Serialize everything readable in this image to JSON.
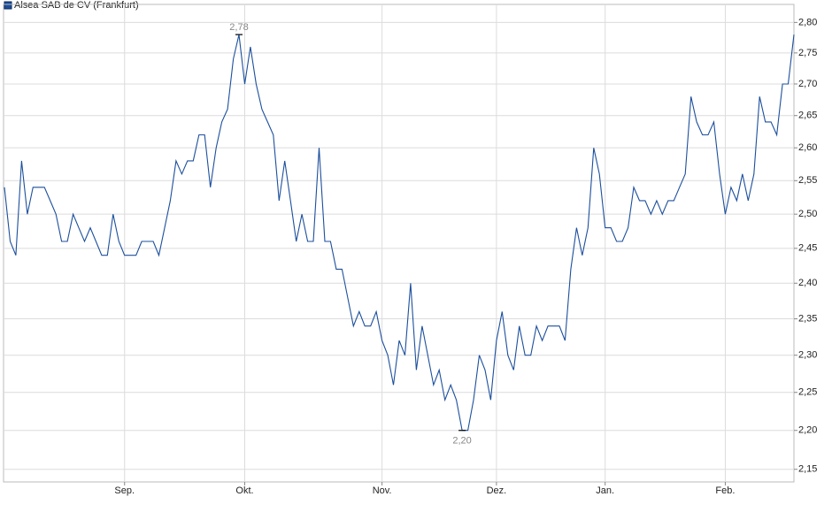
{
  "chart_data": {
    "type": "line",
    "series": [
      {
        "name": "Alsea SAB de CV (Frankfurt)",
        "color": "#1c4f9c",
        "values": [
          2.54,
          2.46,
          2.44,
          2.58,
          2.5,
          2.54,
          2.54,
          2.54,
          2.52,
          2.5,
          2.46,
          2.46,
          2.5,
          2.48,
          2.46,
          2.48,
          2.46,
          2.44,
          2.44,
          2.5,
          2.46,
          2.44,
          2.44,
          2.44,
          2.46,
          2.46,
          2.46,
          2.44,
          2.48,
          2.52,
          2.58,
          2.56,
          2.58,
          2.58,
          2.62,
          2.62,
          2.54,
          2.6,
          2.64,
          2.66,
          2.74,
          2.78,
          2.7,
          2.76,
          2.7,
          2.66,
          2.64,
          2.62,
          2.52,
          2.58,
          2.52,
          2.46,
          2.5,
          2.46,
          2.46,
          2.6,
          2.46,
          2.46,
          2.42,
          2.42,
          2.38,
          2.34,
          2.36,
          2.34,
          2.34,
          2.36,
          2.32,
          2.3,
          2.26,
          2.32,
          2.3,
          2.4,
          2.28,
          2.34,
          2.3,
          2.26,
          2.28,
          2.24,
          2.26,
          2.24,
          2.2,
          2.2,
          2.24,
          2.3,
          2.28,
          2.24,
          2.32,
          2.36,
          2.3,
          2.28,
          2.34,
          2.3,
          2.3,
          2.34,
          2.32,
          2.34,
          2.34,
          2.34,
          2.32,
          2.42,
          2.48,
          2.44,
          2.48,
          2.6,
          2.56,
          2.48,
          2.48,
          2.46,
          2.46,
          2.48,
          2.54,
          2.52,
          2.52,
          2.5,
          2.52,
          2.5,
          2.52,
          2.52,
          2.54,
          2.56,
          2.68,
          2.64,
          2.62,
          2.62,
          2.64,
          2.56,
          2.5,
          2.54,
          2.52,
          2.56,
          2.52,
          2.56,
          2.68,
          2.64,
          2.64,
          2.62,
          2.7,
          2.7,
          2.78
        ]
      }
    ],
    "categories": [
      null,
      null,
      null,
      null,
      null,
      null,
      null,
      null,
      null,
      null,
      null,
      null,
      null,
      null,
      null,
      null,
      null,
      null,
      null,
      null,
      null,
      "Sep.",
      null,
      null,
      null,
      null,
      null,
      null,
      null,
      null,
      null,
      null,
      null,
      null,
      null,
      null,
      null,
      null,
      null,
      null,
      null,
      null,
      "Okt.",
      null,
      null,
      null,
      null,
      null,
      null,
      null,
      null,
      null,
      null,
      null,
      null,
      null,
      null,
      null,
      null,
      null,
      null,
      null,
      null,
      null,
      null,
      null,
      "Nov.",
      null,
      null,
      null,
      null,
      null,
      null,
      null,
      null,
      null,
      null,
      null,
      null,
      null,
      null,
      null,
      null,
      null,
      null,
      null,
      "Dez.",
      null,
      null,
      null,
      null,
      null,
      null,
      null,
      null,
      null,
      null,
      null,
      null,
      null,
      null,
      null,
      null,
      null,
      null,
      "Jan.",
      null,
      null,
      null,
      null,
      null,
      null,
      null,
      null,
      null,
      null,
      null,
      null,
      null,
      null,
      null,
      null,
      null,
      null,
      null,
      null,
      "Feb.",
      null,
      null,
      null,
      null,
      null,
      null,
      null,
      null,
      null,
      null,
      null,
      null
    ],
    "log_scale": true,
    "grid": true,
    "ylim": [
      2.134,
      2.83
    ],
    "yticks": [
      {
        "value": 2.15,
        "label": "2,15"
      },
      {
        "value": 2.2,
        "label": "2,20"
      },
      {
        "value": 2.25,
        "label": "2,25"
      },
      {
        "value": 2.3,
        "label": "2,30"
      },
      {
        "value": 2.35,
        "label": "2,35"
      },
      {
        "value": 2.4,
        "label": "2,40"
      },
      {
        "value": 2.45,
        "label": "2,45"
      },
      {
        "value": 2.5,
        "label": "2,50"
      },
      {
        "value": 2.55,
        "label": "2,55"
      },
      {
        "value": 2.6,
        "label": "2,60"
      },
      {
        "value": 2.65,
        "label": "2,65"
      },
      {
        "value": 2.7,
        "label": "2,70"
      },
      {
        "value": 2.75,
        "label": "2,75"
      },
      {
        "value": 2.8,
        "label": "2,80"
      }
    ],
    "annotations": [
      {
        "value": 2.78,
        "label": "2,78"
      },
      {
        "value": 2.2,
        "label": "2,20"
      }
    ]
  }
}
